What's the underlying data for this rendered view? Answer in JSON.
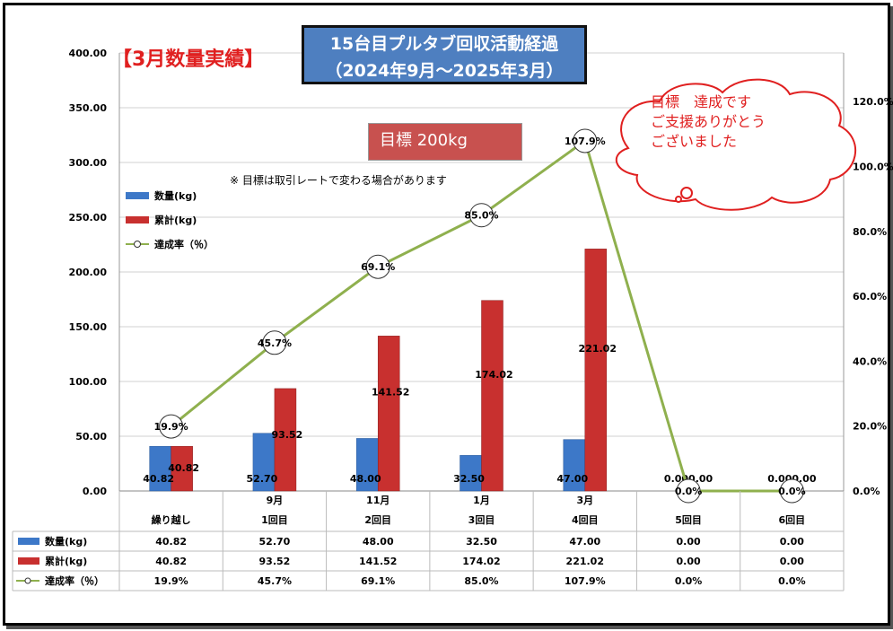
{
  "header": {
    "title_line1": "15台目プルタブ回収活動経過",
    "title_line2": "（2024年9月～2025年3月）",
    "subtitle": "【3月数量実績】",
    "target": "目標 200kg",
    "note": "※ 目標は取引レートで変わる場合があります",
    "bubble_lines": [
      "目標　達成です",
      "ご支援ありがとう",
      "ございました"
    ]
  },
  "legend": {
    "qty": "数量(kg)",
    "cum": "累計(kg)",
    "rate": "達成率（％）"
  },
  "colors": {
    "qty": "#3d78c8",
    "cum": "#c8302f",
    "rate": "#8fb04e",
    "bubble": "#e02020"
  },
  "chart_data": {
    "type": "bar",
    "categories_top": [
      "",
      "9月",
      "11月",
      "1月",
      "3月",
      "",
      ""
    ],
    "categories_bottom": [
      "繰り越し",
      "1回目",
      "2回目",
      "3回目",
      "4回目",
      "5回目",
      "6回目"
    ],
    "series": [
      {
        "name": "数量(kg)",
        "values": [
          40.82,
          52.7,
          48.0,
          32.5,
          47.0,
          0.0,
          0.0
        ],
        "labels": [
          "40.82",
          "52.70",
          "48.00",
          "32.50",
          "47.00",
          "0.00",
          "0.00"
        ]
      },
      {
        "name": "累計(kg)",
        "values": [
          40.82,
          93.52,
          141.52,
          174.02,
          221.02,
          0.0,
          0.0
        ],
        "labels": [
          "40.82",
          "93.52",
          "141.52",
          "174.02",
          "221.02",
          "0.00",
          "0.00"
        ]
      },
      {
        "name": "達成率（％）",
        "values": [
          19.9,
          45.7,
          69.1,
          85.0,
          107.9,
          0.0,
          0.0
        ],
        "labels": [
          "19.9%",
          "45.7%",
          "69.1%",
          "85.0%",
          "107.9%",
          "0.0%",
          "0.0%"
        ],
        "axis": "secondary"
      }
    ],
    "y_left": {
      "min": 0,
      "max": 400,
      "step": 50,
      "ticks": [
        "0.00",
        "50.00",
        "100.00",
        "150.00",
        "200.00",
        "250.00",
        "300.00",
        "350.00",
        "400.00"
      ]
    },
    "y_right": {
      "min": 0,
      "max": 135,
      "ticks": [
        "0.0%",
        "20.0%",
        "40.0%",
        "60.0%",
        "80.0%",
        "100.0%",
        "120.0%"
      ],
      "tick_values": [
        0,
        20,
        40,
        60,
        80,
        100,
        120
      ]
    },
    "grid": true,
    "legend_placement": "left",
    "table": true
  }
}
